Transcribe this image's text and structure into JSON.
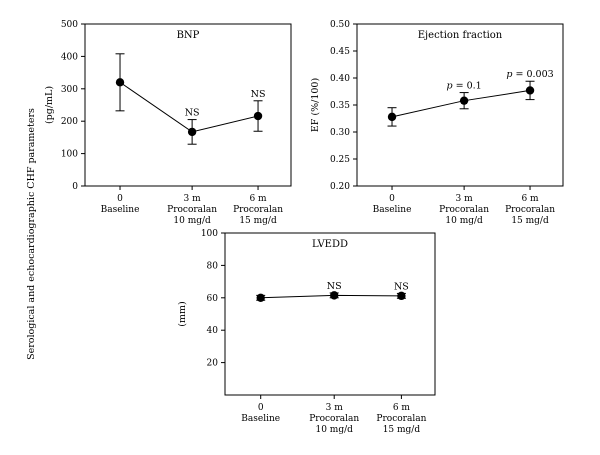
{
  "figure": {
    "shared_ylabel": "Serological and echocardiographic CHF parameters"
  },
  "chart_data": [
    {
      "type": "line",
      "title": "BNP",
      "ylabel": "(pg/mL)",
      "ylim": [
        0,
        500
      ],
      "yticks": [
        0,
        100,
        200,
        300,
        400,
        500
      ],
      "ytick_labels": [
        "0",
        "100",
        "200",
        "300",
        "400",
        "500"
      ],
      "categories": [
        [
          "0",
          "Baseline"
        ],
        [
          "3 m",
          "Procoralan",
          "10 mg/d"
        ],
        [
          "6 m",
          "Procoralan",
          "15 mg/d"
        ]
      ],
      "values": [
        320,
        167,
        216
      ],
      "errors": [
        88,
        38,
        47
      ],
      "annotations": [
        {
          "index": 1,
          "parts": [
            {
              "text": "NS",
              "italic": false
            }
          ]
        },
        {
          "index": 2,
          "parts": [
            {
              "text": "NS",
              "italic": false
            }
          ]
        }
      ]
    },
    {
      "type": "line",
      "title": "Ejection fraction",
      "ylabel": "EF (%/100)",
      "ylim": [
        0.2,
        0.5
      ],
      "yticks": [
        0.2,
        0.25,
        0.3,
        0.35,
        0.4,
        0.45,
        0.5
      ],
      "ytick_labels": [
        "0.20",
        "0.25",
        "0.30",
        "0.35",
        "0.40",
        "0.45",
        "0.50"
      ],
      "categories": [
        [
          "0",
          "Baseline"
        ],
        [
          "3 m",
          "Procoralan",
          "10 mg/d"
        ],
        [
          "6 m",
          "Procoralan",
          "15 mg/d"
        ]
      ],
      "values": [
        0.328,
        0.358,
        0.377
      ],
      "errors": [
        0.017,
        0.015,
        0.017
      ],
      "annotations": [
        {
          "index": 1,
          "parts": [
            {
              "text": "p",
              "italic": true
            },
            {
              "text": " = 0.1",
              "italic": false
            }
          ]
        },
        {
          "index": 2,
          "parts": [
            {
              "text": "p",
              "italic": true
            },
            {
              "text": " = 0.003",
              "italic": false
            }
          ]
        }
      ]
    },
    {
      "type": "line",
      "title": "LVEDD",
      "ylabel": "(mm)",
      "ylim": [
        0,
        100
      ],
      "yticks": [
        20,
        40,
        60,
        80,
        100
      ],
      "ytick_labels": [
        "20",
        "40",
        "60",
        "80",
        "100"
      ],
      "categories": [
        [
          "0",
          "Baseline"
        ],
        [
          "3 m",
          "Procoralan",
          "10 mg/d"
        ],
        [
          "6 m",
          "Procoralan",
          "15 mg/d"
        ]
      ],
      "values": [
        60,
        61.5,
        61.2
      ],
      "errors": [
        1.5,
        1.5,
        1.5
      ],
      "annotations": [
        {
          "index": 1,
          "parts": [
            {
              "text": "NS",
              "italic": false
            }
          ]
        },
        {
          "index": 2,
          "parts": [
            {
              "text": "NS",
              "italic": false
            }
          ]
        }
      ]
    }
  ]
}
